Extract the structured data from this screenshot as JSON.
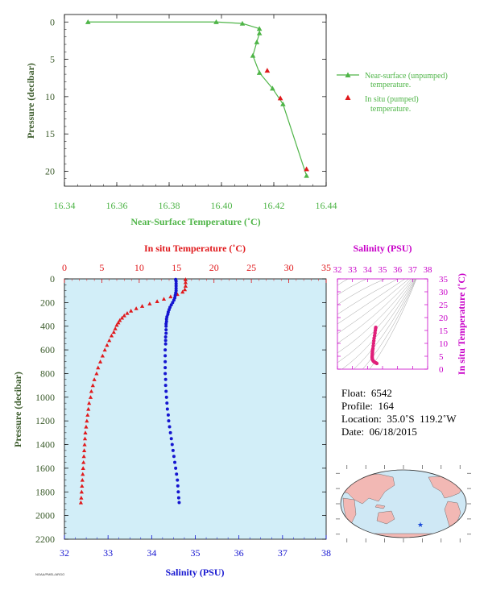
{
  "colors": {
    "green": "#4fb548",
    "red": "#e0191c",
    "blue": "#1515d0",
    "magenta": "#c800c8",
    "dark_green": "#3a5a2a",
    "panel_bg": "#d2eef8",
    "land": "#f2b8b4",
    "ocean": "#cfe8f5",
    "star": "#1a4ad8"
  },
  "chart_data": [
    {
      "type": "line",
      "xlabel": "Near-Surface Temperature (˚C)",
      "ylabel": "Pressure (decibar)",
      "xlim": [
        16.34,
        16.44
      ],
      "ylim": [
        22,
        -1
      ],
      "xticks": [
        "16.34",
        "16.36",
        "16.38",
        "16.40",
        "16.42",
        "16.44"
      ],
      "yticks": [
        "0",
        "5",
        "10",
        "15",
        "20"
      ],
      "legend": {
        "position": "right",
        "entries": [
          [
            "Near-surface (unpumped)",
            "temperature."
          ],
          [
            "In situ (pumped)",
            "temperature."
          ]
        ]
      },
      "series": [
        {
          "name": "Near-surface (unpumped) temperature.",
          "marker": "triangle",
          "color": "green",
          "x": [
            16.349,
            16.398,
            16.408,
            16.4145,
            16.4145,
            16.4135,
            16.412,
            16.4145,
            16.4195,
            16.4235,
            16.4325
          ],
          "y": [
            0.0,
            0.0,
            0.2,
            0.9,
            1.5,
            2.7,
            4.5,
            6.8,
            8.9,
            11.0,
            20.6
          ]
        },
        {
          "name": "In situ (pumped) temperature.",
          "marker": "triangle",
          "color": "red",
          "x": [
            16.4175,
            16.4225,
            16.4325
          ],
          "y": [
            6.5,
            10.2,
            19.7
          ]
        }
      ]
    },
    {
      "type": "scatter",
      "x_top_label": "In situ Temperature (˚C)",
      "x_bottom_label": "Salinity (PSU)",
      "ylabel": "Pressure (decibar)",
      "temperature_axis": [
        0,
        35
      ],
      "salinity_axis": [
        32,
        38
      ],
      "pressure_axis": [
        0,
        2200
      ],
      "temperature_ticks": [
        "0",
        "5",
        "10",
        "15",
        "20",
        "25",
        "30",
        "35"
      ],
      "salinity_ticks": [
        "32",
        "33",
        "34",
        "35",
        "36",
        "37",
        "38"
      ],
      "pressure_ticks": [
        "0",
        "200",
        "400",
        "600",
        "800",
        "1000",
        "1200",
        "1400",
        "1600",
        "1800",
        "2000",
        "2200"
      ],
      "temperature_profile": {
        "name": "In situ Temperature",
        "color": "red",
        "pressure": [
          5,
          30,
          60,
          90,
          110,
          130,
          150,
          170,
          190,
          210,
          230,
          250,
          270,
          290,
          310,
          330,
          350,
          370,
          390,
          420,
          450,
          480,
          520,
          560,
          600,
          650,
          700,
          750,
          800,
          850,
          900,
          950,
          1000,
          1050,
          1100,
          1150,
          1200,
          1250,
          1300,
          1350,
          1400,
          1450,
          1500,
          1550,
          1600,
          1650,
          1700,
          1750,
          1800,
          1850,
          1890
        ],
        "temperature": [
          16.2,
          16.2,
          16.2,
          16.1,
          15.8,
          15.1,
          14.2,
          13.3,
          12.4,
          11.4,
          10.4,
          9.6,
          8.9,
          8.4,
          8.0,
          7.7,
          7.4,
          7.2,
          7.0,
          6.8,
          6.6,
          6.3,
          6.0,
          5.7,
          5.4,
          5.1,
          4.8,
          4.5,
          4.3,
          4.0,
          3.8,
          3.6,
          3.5,
          3.3,
          3.2,
          3.1,
          3.0,
          2.9,
          2.8,
          2.75,
          2.7,
          2.65,
          2.6,
          2.55,
          2.5,
          2.45,
          2.4,
          2.35,
          2.3,
          2.25,
          2.2
        ]
      },
      "salinity_profile": {
        "name": "Salinity",
        "color": "blue",
        "pressure": [
          5,
          20,
          40,
          60,
          80,
          100,
          120,
          140,
          160,
          180,
          200,
          220,
          240,
          260,
          280,
          300,
          320,
          340,
          360,
          380,
          400,
          430,
          460,
          490,
          520,
          550,
          600,
          650,
          700,
          750,
          800,
          850,
          900,
          950,
          1000,
          1050,
          1100,
          1150,
          1200,
          1250,
          1300,
          1350,
          1400,
          1450,
          1500,
          1550,
          1600,
          1650,
          1700,
          1750,
          1800,
          1850,
          1890
        ],
        "salinity": [
          34.55,
          34.56,
          34.56,
          34.56,
          34.56,
          34.56,
          34.55,
          34.54,
          34.53,
          34.51,
          34.48,
          34.45,
          34.42,
          34.4,
          34.38,
          34.37,
          34.35,
          34.34,
          34.34,
          34.33,
          34.33,
          34.33,
          34.33,
          34.32,
          34.32,
          34.32,
          34.31,
          34.31,
          34.31,
          34.31,
          34.31,
          34.32,
          34.32,
          34.33,
          34.34,
          34.35,
          34.36,
          34.38,
          34.39,
          34.41,
          34.43,
          34.45,
          34.47,
          34.49,
          34.51,
          34.53,
          34.55,
          34.57,
          34.59,
          34.6,
          34.61,
          34.62,
          34.63
        ]
      }
    },
    {
      "type": "scatter",
      "title": "Salinity (PSU)",
      "ylabel": "In situ Temperature (˚C)",
      "salinity_ticks": [
        "32",
        "33",
        "34",
        "35",
        "36",
        "37",
        "38"
      ],
      "temperature_ticks": [
        "0",
        "5",
        "10",
        "15",
        "20",
        "25",
        "30",
        "35"
      ],
      "salinity_axis": [
        32,
        38
      ],
      "temperature_axis": [
        0,
        35
      ],
      "ts_points": {
        "salinity": [
          34.55,
          34.54,
          34.52,
          34.5,
          34.47,
          34.44,
          34.42,
          34.4,
          34.38,
          34.36,
          34.34,
          34.33,
          34.33,
          34.32,
          34.32,
          34.31,
          34.31,
          34.32,
          34.34,
          34.38,
          34.43,
          34.5,
          34.57,
          34.62
        ],
        "temperature": [
          16.2,
          15.8,
          15.0,
          14.0,
          13.0,
          12.0,
          11.0,
          10.0,
          9.0,
          8.0,
          7.5,
          7.0,
          6.5,
          6.0,
          5.5,
          5.0,
          4.5,
          4.0,
          3.6,
          3.2,
          2.9,
          2.6,
          2.4,
          2.2
        ]
      }
    }
  ],
  "info": {
    "float": "Float:  6542",
    "profile": "Profile:  164",
    "location": "Location:  35.0˚S  119.2˚W",
    "date": "Date:  06/18/2015"
  },
  "map": {
    "star_lon": -119.2,
    "star_lat": -35.0
  },
  "footer_text": "NOAA/PMEL/ARGO"
}
